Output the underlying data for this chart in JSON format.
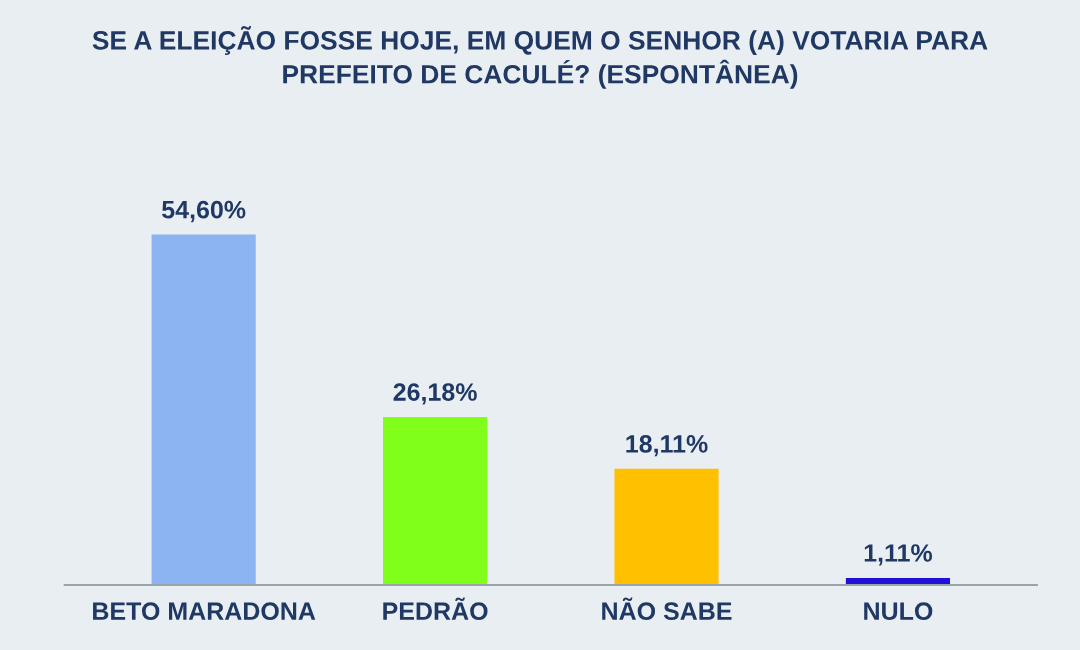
{
  "chart_data": {
    "type": "bar",
    "title": "SE A ELEIÇÃO FOSSE HOJE, EM QUEM O SENHOR (A) VOTARIA PARA\nPREFEITO DE CACULÉ? (ESPONTÂNEA)",
    "categories": [
      "BETO MARADONA",
      "PEDRÃO",
      "NÃO SABE",
      "NULO"
    ],
    "values": [
      54.6,
      26.18,
      18.11,
      1.11
    ],
    "colors": [
      "#8db4f2",
      "#80ff1a",
      "#ffc000",
      "#2010d8"
    ],
    "value_labels": [
      "54,60%",
      "26,18%",
      "18,11%",
      "1,11%"
    ],
    "grid": false,
    "legend": false
  }
}
